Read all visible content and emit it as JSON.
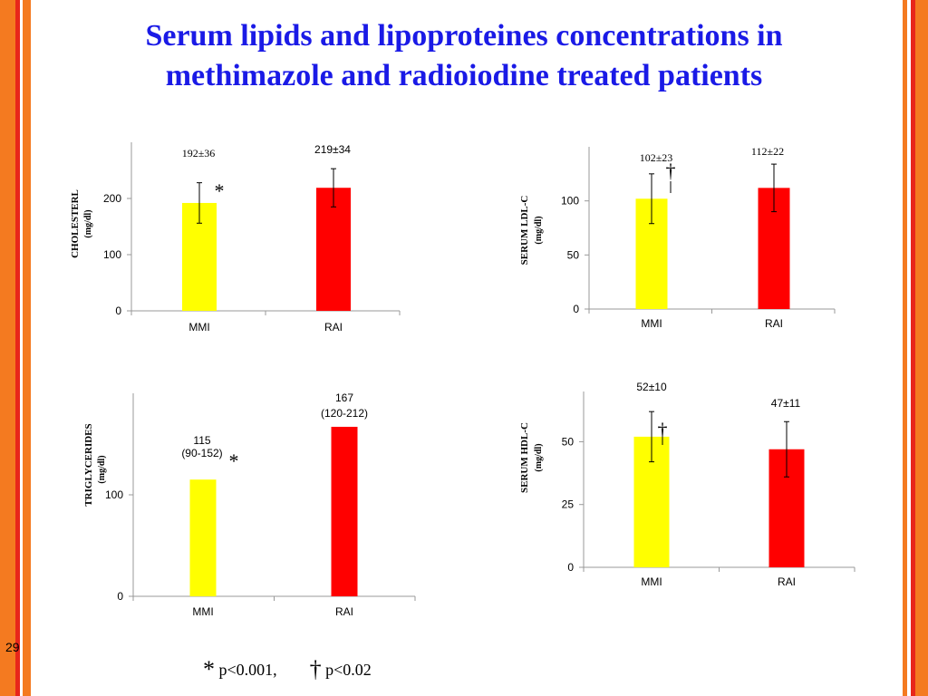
{
  "title_lines": [
    "Serum lipids and lipoproteines concentrations in",
    "methimazole and radioiodine treated patients"
  ],
  "page_number": "29",
  "colors": {
    "title": "#1a1ae6",
    "mmi": "#ffff00",
    "rai": "#ff0000",
    "stripe_orange": "#f47a20",
    "stripe_red": "#e8261a"
  },
  "legend": {
    "sym1": "*",
    "text1": "p<0.001,",
    "sym2": "†",
    "text2": "p<0.02"
  },
  "chart_data": [
    {
      "type": "bar",
      "ylabel": "CHOLESTERL",
      "yunit": "(mg/dl)",
      "categories": [
        "MMI",
        "RAI"
      ],
      "values": [
        192,
        219
      ],
      "errors": [
        36,
        34
      ],
      "ylim": [
        0,
        300
      ],
      "ticks": [
        0,
        100,
        200
      ],
      "value_labels": [
        [
          "192±36"
        ],
        [
          "219±34"
        ]
      ],
      "mark": "*"
    },
    {
      "type": "bar",
      "ylabel": "SERUM  LDL-C",
      "yunit": "(mg/dl)",
      "categories": [
        "MMI",
        "RAI"
      ],
      "values": [
        102,
        112
      ],
      "errors": [
        23,
        22
      ],
      "ylim": [
        0,
        150
      ],
      "ticks": [
        0,
        50,
        100
      ],
      "value_labels": [
        [
          "102±23"
        ],
        [
          "112±22"
        ]
      ],
      "mark": "†"
    },
    {
      "type": "bar",
      "ylabel": "TRIGLYCERIDES",
      "yunit": "(mg/dl)",
      "categories": [
        "MMI",
        "RAI"
      ],
      "values": [
        115,
        167
      ],
      "errors": [
        null,
        null
      ],
      "ylim": [
        0,
        200
      ],
      "ticks": [
        0,
        100
      ],
      "value_labels": [
        [
          "115",
          "(90-152)"
        ],
        [
          "167",
          "(120-212)"
        ]
      ],
      "mark": "*"
    },
    {
      "type": "bar",
      "ylabel": "SERUM HDL-C",
      "yunit": "(mg/dl)",
      "categories": [
        "MMI",
        "RAI"
      ],
      "values": [
        52,
        47
      ],
      "errors": [
        10,
        11
      ],
      "ylim": [
        0,
        70
      ],
      "ticks": [
        0,
        25,
        50
      ],
      "value_labels": [
        [
          "52±10"
        ],
        [
          "47±11"
        ]
      ],
      "mark": "†"
    }
  ]
}
